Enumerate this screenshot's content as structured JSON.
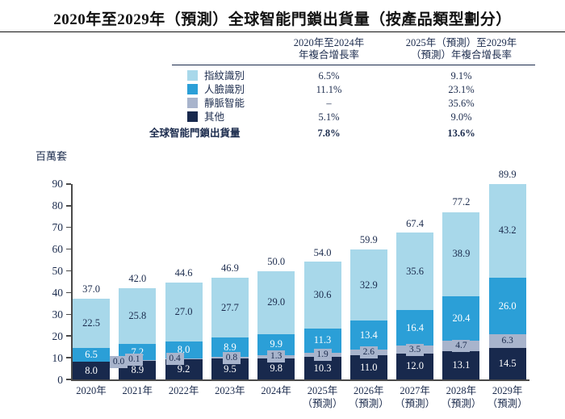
{
  "title": "2020年至2029年（預測）全球智能門鎖出貨量（按產品類型劃分）",
  "table": {
    "col_headers": [
      {
        "line1": "2020年至2024年",
        "line2": "年複合增長率"
      },
      {
        "line1": "2025年（預測）至2029年",
        "line2": "（預測）年複合增長率"
      }
    ],
    "rows": [
      {
        "key": "fingerprint",
        "label": "指紋識別",
        "swatch": "#a8d8ea",
        "cagr_2020_2024": "6.5%",
        "cagr_2025_2029": "9.1%"
      },
      {
        "key": "face",
        "label": "人臉識別",
        "swatch": "#2b9fd7",
        "cagr_2020_2024": "11.1%",
        "cagr_2025_2029": "23.1%"
      },
      {
        "key": "vein",
        "label": "靜脈智能",
        "swatch": "#a8b4cc",
        "cagr_2020_2024": "–",
        "cagr_2025_2029": "35.6%"
      },
      {
        "key": "others",
        "label": "其他",
        "swatch": "#18294d",
        "cagr_2020_2024": "5.1%",
        "cagr_2025_2029": "9.0%"
      }
    ],
    "total_row": {
      "label": "全球智能門鎖出貨量",
      "cagr_2020_2024": "7.8%",
      "cagr_2025_2029": "13.6%"
    }
  },
  "chart_data": {
    "type": "bar",
    "stacked": true,
    "unit_label": "百萬套",
    "categories": [
      "2020年",
      "2021年",
      "2022年",
      "2023年",
      "2024年",
      "2025年",
      "2026年",
      "2027年",
      "2028年",
      "2029年"
    ],
    "category_sublabels": [
      "",
      "",
      "",
      "",
      "",
      "（預測）",
      "（預測）",
      "（預測）",
      "（預測）",
      "（預測）"
    ],
    "series": [
      {
        "key": "others",
        "name": "其他",
        "color": "#18294d",
        "label_color": "#ffffff",
        "values": [
          8.0,
          8.9,
          9.2,
          9.5,
          9.8,
          10.3,
          11.0,
          12.0,
          13.1,
          14.5
        ]
      },
      {
        "key": "vein",
        "name": "靜脈智能",
        "color": "#a8b4cc",
        "label_color": "#1b2b4d",
        "boxed_labels": true,
        "values": [
          0.0,
          0.1,
          0.4,
          0.8,
          1.3,
          1.9,
          2.6,
          3.5,
          4.7,
          6.3
        ]
      },
      {
        "key": "face",
        "name": "人臉識別",
        "color": "#2b9fd7",
        "label_color": "#ffffff",
        "values": [
          6.5,
          7.2,
          8.0,
          8.9,
          9.9,
          11.3,
          13.4,
          16.4,
          20.4,
          26.0
        ]
      },
      {
        "key": "fingerprint",
        "name": "指紋識別",
        "color": "#a8d8ea",
        "label_color": "#1b2b4d",
        "values": [
          22.5,
          25.8,
          27.0,
          27.7,
          29.0,
          30.6,
          32.9,
          35.6,
          38.9,
          43.2
        ]
      }
    ],
    "totals": [
      37.0,
      42.0,
      44.6,
      46.9,
      50.0,
      54.0,
      59.9,
      67.4,
      77.2,
      89.9
    ],
    "ylim": [
      0,
      90
    ],
    "ytick_step": 10,
    "yticks": [
      0,
      10,
      20,
      30,
      40,
      50,
      60,
      70,
      80,
      90
    ],
    "legend_position": "table-left-column",
    "grid": false
  }
}
